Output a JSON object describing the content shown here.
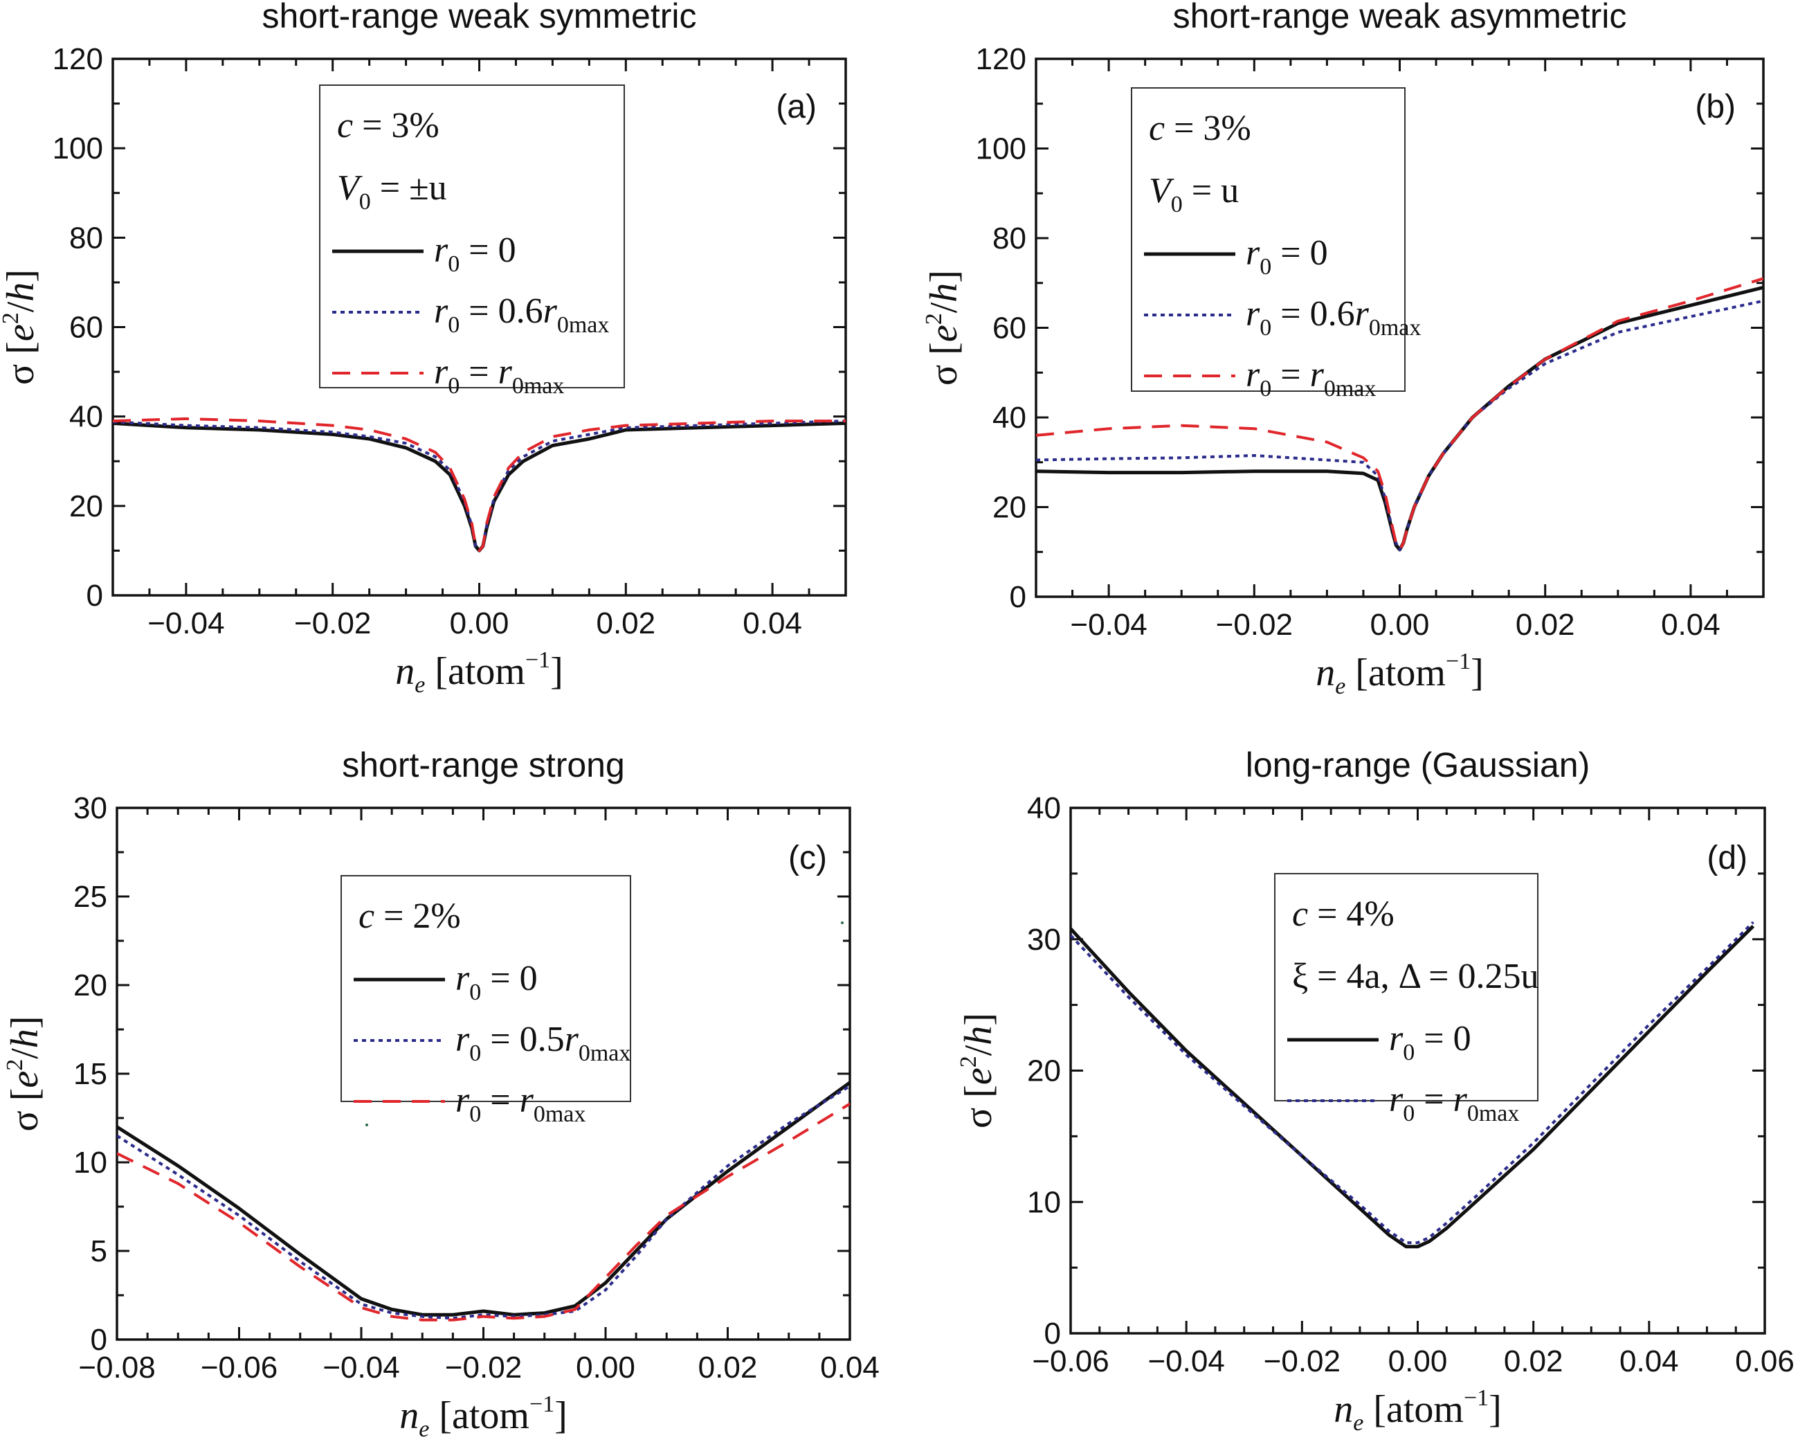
{
  "chart_data": [
    {
      "panel": "(a)",
      "type": "line",
      "title": "short-range weak symmetric",
      "xlabel": "n_e [atom^-1]",
      "ylabel": "σ [e^2/h]",
      "xlim": [
        -0.05,
        0.05
      ],
      "ylim": [
        0,
        120
      ],
      "xticks": [
        -0.04,
        -0.02,
        0.0,
        0.02,
        0.04
      ],
      "xtick_labels": [
        "−0.04",
        "−0.02",
        "0.00",
        "0.02",
        "0.04"
      ],
      "yticks": [
        0,
        20,
        40,
        60,
        80,
        100,
        120
      ],
      "ytick_labels": [
        "0",
        "20",
        "40",
        "60",
        "80",
        "100",
        "120"
      ],
      "legend_position": "top-left",
      "legend_header": [
        "c = 3%",
        "V0 = ±u"
      ],
      "series": [
        {
          "name": "r0 = 0",
          "style": "solid",
          "color": "#111111",
          "x": [
            -0.05,
            -0.04,
            -0.03,
            -0.02,
            -0.015,
            -0.01,
            -0.006,
            -0.004,
            -0.002,
            -0.001,
            -0.0005,
            0.0,
            0.0005,
            0.001,
            0.002,
            0.004,
            0.006,
            0.01,
            0.015,
            0.02,
            0.03,
            0.04,
            0.05
          ],
          "y": [
            38.5,
            37.5,
            37,
            36,
            35,
            33,
            30,
            27,
            20,
            15,
            11,
            10,
            11,
            15,
            21,
            27,
            30,
            33.5,
            35,
            37,
            37.5,
            38,
            38.5
          ]
        },
        {
          "name": "r0 = 0.6r0max",
          "style": "dotted",
          "color": "#2b2b8c",
          "x": [
            -0.05,
            -0.04,
            -0.03,
            -0.02,
            -0.015,
            -0.01,
            -0.006,
            -0.004,
            -0.002,
            -0.001,
            -0.0005,
            0.0,
            0.0005,
            0.001,
            0.002,
            0.004,
            0.006,
            0.01,
            0.015,
            0.02,
            0.03,
            0.04,
            0.05
          ],
          "y": [
            38.8,
            38,
            37.5,
            36.5,
            35.5,
            34,
            31,
            28,
            21,
            15.5,
            11,
            10,
            11,
            15.5,
            21.5,
            28,
            31,
            34.5,
            36,
            37.5,
            38,
            38.5,
            39
          ]
        },
        {
          "name": "r0 = r0max",
          "style": "dashed",
          "color": "#e0262b",
          "x": [
            -0.05,
            -0.04,
            -0.03,
            -0.02,
            -0.015,
            -0.01,
            -0.006,
            -0.004,
            -0.002,
            -0.001,
            -0.0005,
            0.0,
            0.0005,
            0.001,
            0.002,
            0.004,
            0.006,
            0.01,
            0.015,
            0.02,
            0.03,
            0.04,
            0.05
          ],
          "y": [
            39,
            39.5,
            39,
            38,
            37,
            35,
            32,
            28.5,
            21.5,
            16,
            11,
            10,
            11,
            16,
            22,
            28.5,
            32,
            35.5,
            37,
            38,
            38.5,
            39,
            39
          ]
        }
      ]
    },
    {
      "panel": "(b)",
      "type": "line",
      "title": "short-range weak asymmetric",
      "xlabel": "n_e [atom^-1]",
      "ylabel": "σ [e^2/h]",
      "xlim": [
        -0.05,
        0.05
      ],
      "ylim": [
        0,
        120
      ],
      "xticks": [
        -0.04,
        -0.02,
        0.0,
        0.02,
        0.04
      ],
      "xtick_labels": [
        "−0.04",
        "−0.02",
        "0.00",
        "0.02",
        "0.04"
      ],
      "yticks": [
        0,
        20,
        40,
        60,
        80,
        100,
        120
      ],
      "ytick_labels": [
        "0",
        "20",
        "40",
        "60",
        "80",
        "100",
        "120"
      ],
      "legend_position": "top-left",
      "legend_header": [
        "c = 3%",
        "V0 = u"
      ],
      "series": [
        {
          "name": "r0 = 0",
          "style": "solid",
          "color": "#111111",
          "x": [
            -0.05,
            -0.04,
            -0.03,
            -0.02,
            -0.01,
            -0.005,
            -0.003,
            -0.002,
            -0.001,
            -0.0005,
            0.0,
            0.0005,
            0.001,
            0.002,
            0.004,
            0.006,
            0.01,
            0.015,
            0.02,
            0.03,
            0.04,
            0.05
          ],
          "y": [
            28,
            27.7,
            27.7,
            28,
            28,
            27.5,
            26,
            21,
            14.5,
            11.5,
            10.5,
            12,
            15,
            20,
            27,
            32,
            40,
            47,
            53,
            61,
            65,
            69
          ]
        },
        {
          "name": "r0 = 0.6r0max",
          "style": "dotted",
          "color": "#2b2b8c",
          "x": [
            -0.05,
            -0.04,
            -0.03,
            -0.02,
            -0.01,
            -0.005,
            -0.003,
            -0.002,
            -0.001,
            -0.0005,
            0.0,
            0.0005,
            0.001,
            0.002,
            0.004,
            0.006,
            0.01,
            0.015,
            0.02,
            0.03,
            0.04,
            0.05
          ],
          "y": [
            30.5,
            30.8,
            31,
            31.5,
            30.5,
            30,
            27,
            22,
            15,
            12,
            10.5,
            12,
            15,
            20,
            27,
            32,
            40,
            46.5,
            52,
            59,
            62.5,
            66
          ]
        },
        {
          "name": "r0 = r0max",
          "style": "dashed",
          "color": "#e0262b",
          "x": [
            -0.05,
            -0.04,
            -0.03,
            -0.02,
            -0.01,
            -0.005,
            -0.003,
            -0.002,
            -0.001,
            -0.0005,
            0.0,
            0.0005,
            0.001,
            0.002,
            0.004,
            0.006,
            0.01,
            0.015,
            0.02,
            0.03,
            0.04,
            0.05
          ],
          "y": [
            36,
            37.5,
            38.2,
            37.5,
            34.5,
            31,
            28,
            23,
            15.5,
            12,
            10.5,
            12,
            15,
            20,
            27,
            32,
            40,
            47,
            53,
            61.5,
            66,
            71
          ]
        }
      ]
    },
    {
      "panel": "(c)",
      "type": "line",
      "title": "short-range strong",
      "xlabel": "n_e [atom^-1]",
      "ylabel": "σ [e^2/h]",
      "xlim": [
        -0.08,
        0.04
      ],
      "ylim": [
        0,
        30
      ],
      "xticks": [
        -0.08,
        -0.06,
        -0.04,
        -0.02,
        0.0,
        0.02,
        0.04
      ],
      "xtick_labels": [
        "−0.08",
        "−0.06",
        "−0.04",
        "−0.02",
        "0.00",
        "0.02",
        "0.04"
      ],
      "yticks": [
        0,
        5,
        10,
        15,
        20,
        25,
        30
      ],
      "ytick_labels": [
        "0",
        "5",
        "10",
        "15",
        "20",
        "25",
        "30"
      ],
      "legend_position": "top-center",
      "legend_header": [
        "c = 2%"
      ],
      "series": [
        {
          "name": "r0 = 0",
          "style": "solid",
          "color": "#111111",
          "x": [
            -0.08,
            -0.07,
            -0.06,
            -0.05,
            -0.04,
            -0.035,
            -0.03,
            -0.025,
            -0.02,
            -0.015,
            -0.01,
            -0.005,
            0.0,
            0.005,
            0.01,
            0.02,
            0.03,
            0.04
          ],
          "y": [
            12,
            9.8,
            7.4,
            4.8,
            2.3,
            1.7,
            1.4,
            1.4,
            1.6,
            1.4,
            1.5,
            1.9,
            3.2,
            5,
            6.8,
            9.5,
            12,
            14.5
          ]
        },
        {
          "name": "r0 = 0.5r0max",
          "style": "dotted",
          "color": "#2b2b8c",
          "x": [
            -0.08,
            -0.07,
            -0.06,
            -0.05,
            -0.04,
            -0.035,
            -0.03,
            -0.025,
            -0.02,
            -0.015,
            -0.01,
            -0.005,
            0.0,
            0.005,
            0.01,
            0.02,
            0.03,
            0.04
          ],
          "y": [
            11.5,
            9.3,
            7,
            4.4,
            2,
            1.5,
            1.3,
            1.2,
            1.4,
            1.3,
            1.4,
            1.6,
            2.8,
            4.7,
            6.8,
            9.8,
            12.2,
            14.3
          ]
        },
        {
          "name": "r0 = r0max",
          "style": "dashed",
          "color": "#e0262b",
          "x": [
            -0.08,
            -0.07,
            -0.06,
            -0.05,
            -0.04,
            -0.035,
            -0.03,
            -0.025,
            -0.02,
            -0.015,
            -0.01,
            -0.005,
            0.0,
            0.005,
            0.01,
            0.02,
            0.03,
            0.04
          ],
          "y": [
            10.5,
            8.8,
            6.6,
            4.1,
            1.8,
            1.3,
            1.1,
            1.1,
            1.3,
            1.2,
            1.3,
            1.7,
            3.5,
            5.3,
            7,
            9.2,
            11.2,
            13.3
          ]
        }
      ]
    },
    {
      "panel": "(d)",
      "type": "line",
      "title": "long-range (Gaussian)",
      "xlabel": "n_e [atom^-1]",
      "ylabel": "σ [e^2/h]",
      "xlim": [
        -0.06,
        0.06
      ],
      "ylim": [
        0,
        40
      ],
      "xticks": [
        -0.06,
        -0.04,
        -0.02,
        0.0,
        0.02,
        0.04,
        0.06
      ],
      "xtick_labels": [
        "−0.06",
        "−0.04",
        "−0.02",
        "0.00",
        "0.02",
        "0.04",
        "0.06"
      ],
      "yticks": [
        0,
        10,
        20,
        30,
        40
      ],
      "ytick_labels": [
        "0",
        "10",
        "20",
        "30",
        "40"
      ],
      "legend_position": "top-center",
      "legend_header": [
        "c = 4%",
        "ξ = 4a,  Δ = 0.25u"
      ],
      "series": [
        {
          "name": "r0 = 0",
          "style": "solid",
          "color": "#111111",
          "x": [
            -0.06,
            -0.05,
            -0.04,
            -0.03,
            -0.02,
            -0.01,
            -0.005,
            -0.002,
            0.0,
            0.002,
            0.005,
            0.01,
            0.02,
            0.03,
            0.04,
            0.05,
            0.058
          ],
          "y": [
            30.8,
            26,
            21.5,
            17.5,
            13.5,
            9.5,
            7.5,
            6.6,
            6.6,
            7,
            8,
            10,
            14,
            18.5,
            23,
            27.5,
            31
          ]
        },
        {
          "name": "r0 = r0max",
          "style": "dotted",
          "color": "#2b2b8c",
          "x": [
            -0.06,
            -0.05,
            -0.04,
            -0.03,
            -0.02,
            -0.01,
            -0.005,
            -0.002,
            0.0,
            0.002,
            0.005,
            0.01,
            0.02,
            0.03,
            0.04,
            0.05,
            0.058
          ],
          "y": [
            30.3,
            25.6,
            21.2,
            17.3,
            13.5,
            9.8,
            7.8,
            6.9,
            6.9,
            7.3,
            8.4,
            10.4,
            14.5,
            19,
            23.5,
            27.8,
            31.3
          ]
        }
      ]
    }
  ],
  "ui": {
    "panel_a": {
      "label": "(a)",
      "legend": {
        "c": "c = 3%",
        "v0": "V",
        "v0_rest": " = ±u",
        "entries": [
          "r",
          "r",
          "r"
        ]
      }
    },
    "axis_text": {
      "ylabel_sigma": "σ",
      "ylabel_unit": "[e²/h]",
      "xlabel_n": "n",
      "xlabel_sub": "e",
      "xlabel_unit": "[atom",
      "xlabel_exp": "−1",
      "xlabel_close": "]"
    }
  }
}
